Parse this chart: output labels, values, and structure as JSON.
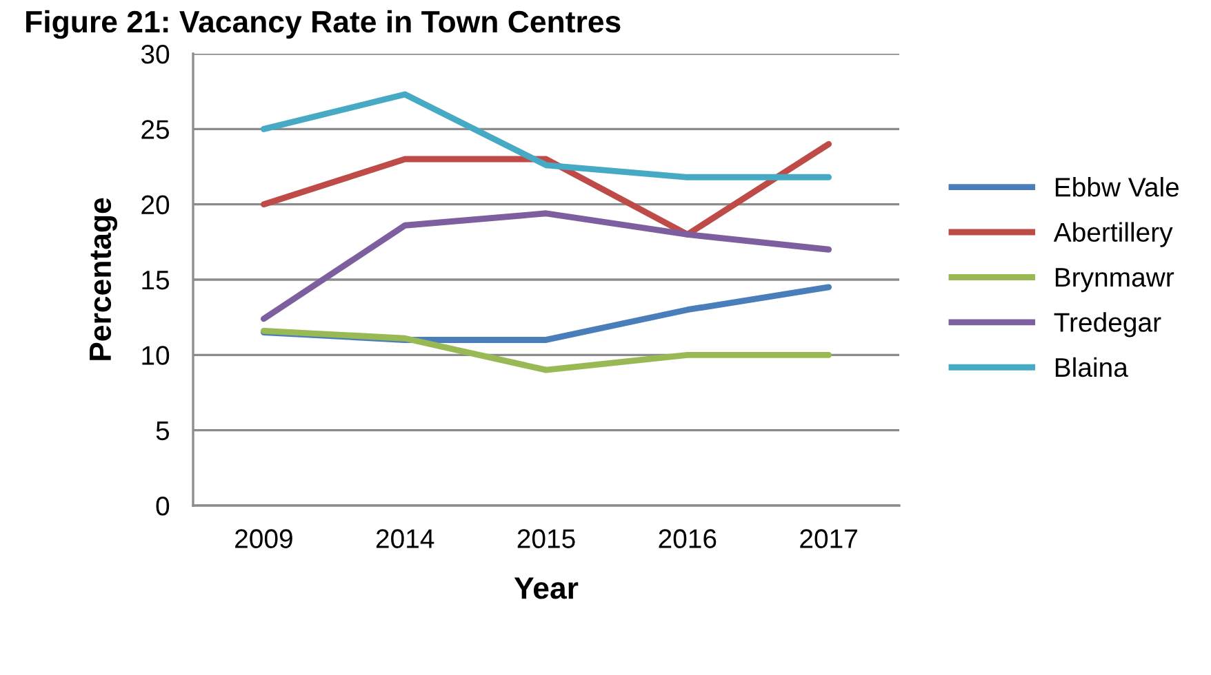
{
  "chart_data": {
    "type": "line",
    "title": "Figure 21: Vacancy Rate in Town Centres",
    "xlabel": "Year",
    "ylabel": "Percentage",
    "categories": [
      "2009",
      "2014",
      "2015",
      "2016",
      "2017"
    ],
    "series": [
      {
        "name": "Ebbw Vale",
        "color": "#4a7ebb",
        "values": [
          11.5,
          11,
          11,
          13,
          14.5
        ]
      },
      {
        "name": "Abertillery",
        "color": "#be4b48",
        "values": [
          20,
          23,
          23,
          18,
          24
        ]
      },
      {
        "name": "Brynmawr",
        "color": "#98b954",
        "values": [
          11.6,
          11.1,
          9,
          10,
          10
        ]
      },
      {
        "name": "Tredegar",
        "color": "#7d5fa0",
        "values": [
          12.4,
          18.6,
          19.4,
          18,
          17
        ]
      },
      {
        "name": "Blaina",
        "color": "#46aac5",
        "values": [
          25,
          27.3,
          22.6,
          21.8,
          21.8
        ]
      }
    ],
    "ylim": [
      0,
      30
    ],
    "yticks": [
      0,
      5,
      10,
      15,
      20,
      25,
      30
    ],
    "grid": "y",
    "legend": "right",
    "marker": "none",
    "line_style": "solid"
  }
}
